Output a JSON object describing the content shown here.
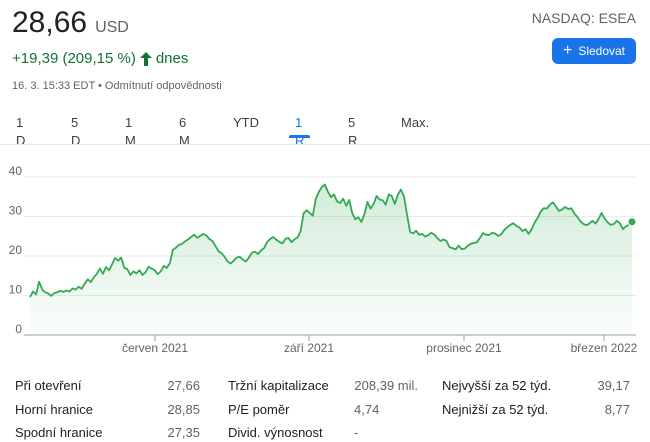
{
  "quote": {
    "price": "28,66",
    "currency": "USD",
    "change": "+19,39 (209,15 %)",
    "change_period": "dnes",
    "timestamp": "16. 3. 15:33 EDT • Odmítnutí odpovědnosti",
    "ticker": "NASDAQ: ESEA"
  },
  "follow_button": {
    "label": "Sledovat",
    "icon": "plus-icon",
    "color": "#1a73e8"
  },
  "range_tabs": [
    {
      "label": "1 D",
      "active": false
    },
    {
      "label": "5 D",
      "active": false
    },
    {
      "label": "1 M",
      "active": false
    },
    {
      "label": "6 M",
      "active": false
    },
    {
      "label": "YTD",
      "active": false
    },
    {
      "label": "1 R",
      "active": true
    },
    {
      "label": "5 R",
      "active": false
    },
    {
      "label": "Max.",
      "active": false
    }
  ],
  "colors": {
    "up": "#137333",
    "line": "#34a853",
    "fill": "#e6f4ea",
    "accent": "#1a73e8"
  },
  "chart_data": {
    "type": "area",
    "xlabel": "",
    "ylabel": "",
    "ylim": [
      0,
      40
    ],
    "yticks": [
      "0",
      "10",
      "20",
      "30",
      "40"
    ],
    "xticks": [
      "červen 2021",
      "září 2021",
      "prosinec 2021",
      "březen 2022"
    ],
    "grid": true,
    "series": [
      {
        "values": [
          9.6,
          11.0,
          10.3,
          13.5,
          11.5,
          10.8,
          10.5,
          9.9,
          10.6,
          10.8,
          11.2,
          10.9,
          11.3,
          11.0,
          11.8,
          11.5,
          12.2,
          11.7,
          13.0,
          14.1,
          13.4,
          14.6,
          15.5,
          16.8,
          15.5,
          17.2,
          16.4,
          17.9,
          19.5,
          18.8,
          19.6,
          17.0,
          16.7,
          15.2,
          16.1,
          15.6,
          16.4,
          15.2,
          15.9,
          17.3,
          16.8,
          16.4,
          15.4,
          16.1,
          17.5,
          17.0,
          18.2,
          21.6,
          22.1,
          22.8,
          23.1,
          23.7,
          24.2,
          24.8,
          25.4,
          24.6,
          25.1,
          25.6,
          25.2,
          24.3,
          23.8,
          22.5,
          21.2,
          20.7,
          19.8,
          18.6,
          18.1,
          18.8,
          19.6,
          19.8,
          19.1,
          18.6,
          19.6,
          20.8,
          21.1,
          20.5,
          21.4,
          22.0,
          23.6,
          24.3,
          24.8,
          24.1,
          23.6,
          23.2,
          24.3,
          24.6,
          23.5,
          24.2,
          24.7,
          26.3,
          30.8,
          31.6,
          30.9,
          30.2,
          34.5,
          36.2,
          37.5,
          38.1,
          36.2,
          34.9,
          35.6,
          33.8,
          33.4,
          34.5,
          32.7,
          34.2,
          30.8,
          29.3,
          29.8,
          28.6,
          30.6,
          33.7,
          32.0,
          33.2,
          35.2,
          34.3,
          34.1,
          33.0,
          35.6,
          35.2,
          33.2,
          35.6,
          36.8,
          35.1,
          30.5,
          26.1,
          25.7,
          26.4,
          25.4,
          25.6,
          24.9,
          25.3,
          25.9,
          25.4,
          24.5,
          23.8,
          24.2,
          23.8,
          22.2,
          22.0,
          21.7,
          22.6,
          21.7,
          21.9,
          22.6,
          23.1,
          23.3,
          23.5,
          24.6,
          25.8,
          25.4,
          25.3,
          25.9,
          25.7,
          25.1,
          25.5,
          26.6,
          27.3,
          27.9,
          28.3,
          27.6,
          27.2,
          26.3,
          26.8,
          25.6,
          26.8,
          28.5,
          29.7,
          31.3,
          32.1,
          32.0,
          33.0,
          33.6,
          32.5,
          31.4,
          31.8,
          32.4,
          31.9,
          32.1,
          30.8,
          29.9,
          28.8,
          28.1,
          27.8,
          28.2,
          28.9,
          28.2,
          29.4,
          30.9,
          29.5,
          28.5,
          27.9,
          28.1,
          28.9,
          28.3,
          26.8,
          27.5,
          27.9,
          28.66
        ]
      }
    ]
  },
  "stats": [
    [
      {
        "label": "Při otevření",
        "value": "27,66"
      },
      {
        "label": "Tržní kapitalizace",
        "value": "208,39 mil."
      },
      {
        "label": "Nejvyšší za 52 týd.",
        "value": "39,17"
      }
    ],
    [
      {
        "label": "Horní hranice",
        "value": "28,85"
      },
      {
        "label": "P/E poměr",
        "value": "4,74"
      },
      {
        "label": "Nejnižší za 52 týd.",
        "value": "8,77"
      }
    ],
    [
      {
        "label": "Spodní hranice",
        "value": "27,35"
      },
      {
        "label": "Divid. výnosnost",
        "value": "-"
      },
      null
    ]
  ]
}
